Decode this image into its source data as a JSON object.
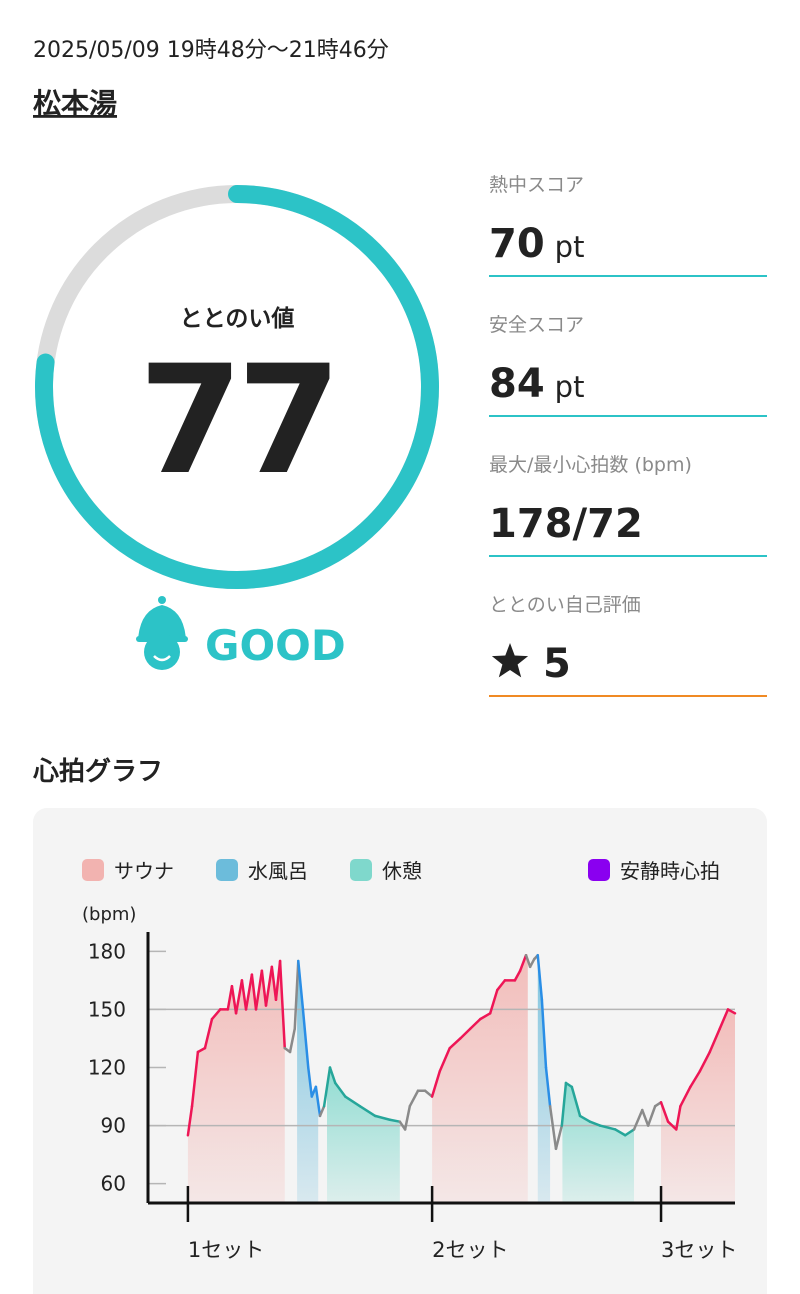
{
  "header": {
    "datetime": "2025/05/09 19時48分〜21時46分",
    "place": "松本湯"
  },
  "score": {
    "label": "ととのい値",
    "value": 77,
    "max": 100,
    "rating": "GOOD",
    "color": "#2cc3c7",
    "track_color": "#dcdcdc"
  },
  "stats": [
    {
      "label": "熱中スコア",
      "value": 70,
      "unit": "pt",
      "underline": "#2cc3c7"
    },
    {
      "label": "安全スコア",
      "value": 84,
      "unit": "pt",
      "underline": "#2cc3c7"
    },
    {
      "label": "最大/最小心拍数 (bpm)",
      "value": "178/72",
      "underline": "#2cc3c7"
    },
    {
      "label": "ととのい自己評価",
      "value": 5,
      "underline": "#f08a24"
    }
  ],
  "section_title": "心拍グラフ",
  "chart_data": {
    "type": "line",
    "ylabel": "(bpm)",
    "legend": [
      {
        "name": "サウナ",
        "color": "#f2b3b0",
        "line_color": "#ee1656"
      },
      {
        "name": "水風呂",
        "color": "#6cbcdb",
        "line_color": "#2a8ee6"
      },
      {
        "name": "休憩",
        "color": "#7fd8cc",
        "line_color": "#26a69a"
      },
      {
        "name": "安静時心拍",
        "color": "#8a00f0"
      }
    ],
    "other_line_color": "#8a8a8a",
    "xlim": [
      0,
      100
    ],
    "xticks": [
      {
        "value": 6.8,
        "label": "1セット"
      },
      {
        "value": 48.4,
        "label": "2セット"
      },
      {
        "value": 87.4,
        "label": "3セット"
      }
    ],
    "ylim": [
      50,
      190
    ],
    "yticks": [
      60,
      90,
      120,
      150,
      180
    ],
    "reference_lines": [
      90,
      150
    ],
    "phases": [
      {
        "legend": 0,
        "start": 6.8,
        "end": 23.3
      },
      {
        "legend": 1,
        "start": 25.4,
        "end": 29.0
      },
      {
        "legend": 2,
        "start": 30.5,
        "end": 42.9
      },
      {
        "legend": 0,
        "start": 48.4,
        "end": 64.7
      },
      {
        "legend": 1,
        "start": 66.4,
        "end": 68.5
      },
      {
        "legend": 2,
        "start": 70.6,
        "end": 82.8
      },
      {
        "legend": 0,
        "start": 87.4,
        "end": 100
      }
    ],
    "x": [
      6.8,
      7.5,
      8.5,
      9.7,
      10.9,
      12.3,
      13.6,
      14.3,
      15.0,
      16.0,
      16.7,
      17.7,
      18.4,
      19.4,
      20.1,
      21.1,
      21.8,
      22.5,
      23.3,
      24.2,
      25.0,
      25.6,
      26.4,
      27.3,
      27.9,
      28.6,
      29.3,
      30.0,
      31.0,
      31.9,
      33.6,
      36.1,
      38.7,
      41.2,
      42.9,
      43.8,
      44.6,
      46.0,
      47.2,
      48.4,
      49.7,
      51.4,
      53.2,
      54.9,
      56.6,
      58.3,
      59.5,
      60.8,
      62.5,
      63.4,
      64.4,
      65.1,
      65.8,
      66.4,
      67.1,
      67.8,
      68.5,
      69.5,
      70.5,
      71.2,
      72.2,
      73.6,
      75.3,
      77.0,
      79.6,
      81.3,
      82.8,
      84.2,
      85.2,
      86.4,
      87.4,
      88.6,
      90.0,
      90.7,
      92.4,
      94.0,
      95.7,
      97.4,
      98.8,
      100
    ],
    "values": [
      85,
      100,
      128,
      130,
      145,
      150,
      150,
      162,
      148,
      165,
      150,
      168,
      150,
      170,
      152,
      172,
      155,
      175,
      130,
      128,
      140,
      175,
      150,
      120,
      105,
      110,
      95,
      100,
      120,
      112,
      105,
      100,
      95,
      93,
      92,
      88,
      100,
      108,
      108,
      105,
      118,
      130,
      135,
      140,
      145,
      148,
      160,
      165,
      165,
      170,
      178,
      172,
      176,
      178,
      155,
      120,
      100,
      78,
      90,
      112,
      110,
      95,
      92,
      90,
      88,
      85,
      88,
      98,
      90,
      100,
      102,
      92,
      88,
      100,
      110,
      118,
      128,
      140,
      150,
      148
    ]
  }
}
